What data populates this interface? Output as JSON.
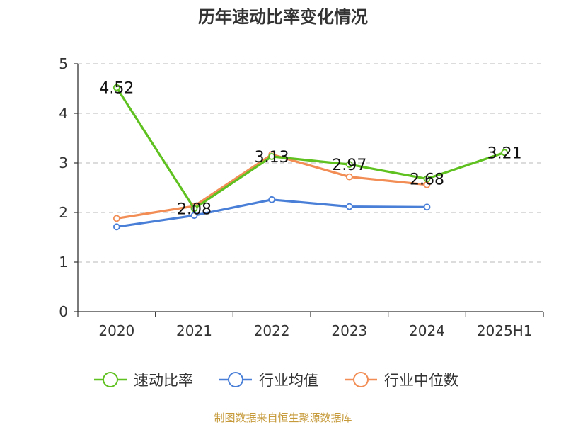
{
  "chart_data": {
    "type": "line",
    "title": "历年速动比率变化情况",
    "categories": [
      "2020",
      "2021",
      "2022",
      "2023",
      "2024",
      "2025H1"
    ],
    "ylim": [
      0,
      5
    ],
    "yticks": [
      "0",
      "1",
      "2",
      "3",
      "4",
      "5"
    ],
    "grid": true,
    "legend_position": "bottom",
    "series": [
      {
        "name": "速动比率",
        "color": "#5ec11f",
        "values": [
          4.52,
          2.08,
          3.13,
          2.97,
          2.68,
          3.21
        ],
        "labels": [
          "4.52",
          "2.08",
          "3.13",
          "2.97",
          "2.68",
          "3.21"
        ]
      },
      {
        "name": "行业均值",
        "color": "#4a7fd8",
        "values": [
          1.71,
          1.94,
          2.26,
          2.12,
          2.11,
          null
        ]
      },
      {
        "name": "行业中位数",
        "color": "#f28d55",
        "values": [
          1.88,
          2.13,
          3.17,
          2.72,
          2.56,
          null
        ]
      }
    ]
  },
  "source": "制图数据来自恒生聚源数据库"
}
